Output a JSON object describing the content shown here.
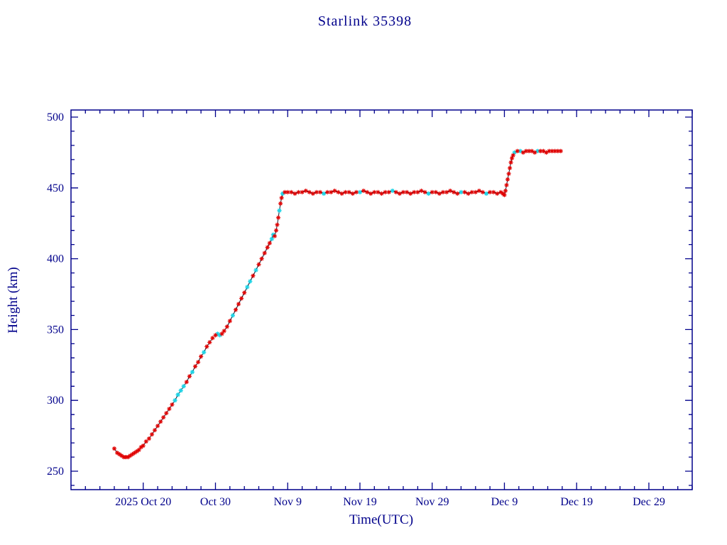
{
  "page": {
    "background": "#ffffff"
  },
  "chart_data": {
    "type": "line",
    "title": "Starlink 35398",
    "xlabel": "Time(UTC)",
    "ylabel": "Height (km)",
    "grid": false,
    "legend": null,
    "axis_color": "#00008b",
    "line_color": "#14142a",
    "marker_colors": [
      "#e00000",
      "#1fd4e6"
    ],
    "marker": "asterisk",
    "x_axis": {
      "unit": "days since 2025 Oct 20 (UTC)",
      "range": [
        -10,
        76
      ],
      "major_ticks": [
        {
          "t": 0,
          "label": "2025 Oct 20"
        },
        {
          "t": 10,
          "label": "Oct 30"
        },
        {
          "t": 20,
          "label": "Nov 9"
        },
        {
          "t": 30,
          "label": "Nov 19"
        },
        {
          "t": 40,
          "label": "Nov 29"
        },
        {
          "t": 50,
          "label": "Dec 9"
        },
        {
          "t": 60,
          "label": "Dec 19"
        },
        {
          "t": 70,
          "label": "Dec 29"
        }
      ],
      "minor_tick_step": 2
    },
    "y_axis": {
      "range": [
        237,
        505
      ],
      "major_ticks": [
        250,
        300,
        350,
        400,
        450,
        500
      ],
      "minor_tick_step": 10
    },
    "series": [
      {
        "name": "height-km",
        "point_format": [
          "days_since_oct20",
          "height_km",
          "marker_color_index"
        ],
        "points": [
          [
            -4.0,
            266,
            0
          ],
          [
            -3.6,
            263,
            0
          ],
          [
            -3.3,
            262,
            0
          ],
          [
            -3.0,
            261,
            0
          ],
          [
            -2.7,
            260,
            0
          ],
          [
            -2.4,
            260,
            0
          ],
          [
            -2.1,
            260,
            0
          ],
          [
            -1.8,
            261,
            0
          ],
          [
            -1.5,
            262,
            0
          ],
          [
            -1.2,
            263,
            0
          ],
          [
            -0.9,
            264,
            0
          ],
          [
            -0.6,
            265,
            0
          ],
          [
            -0.3,
            267,
            0
          ],
          [
            0.0,
            268,
            0
          ],
          [
            0.4,
            271,
            0
          ],
          [
            0.8,
            273,
            0
          ],
          [
            1.2,
            276,
            0
          ],
          [
            1.6,
            279,
            0
          ],
          [
            2.0,
            282,
            0
          ],
          [
            2.4,
            285,
            0
          ],
          [
            2.8,
            288,
            0
          ],
          [
            3.2,
            291,
            0
          ],
          [
            3.6,
            294,
            0
          ],
          [
            4.0,
            297,
            0
          ],
          [
            4.4,
            300,
            1
          ],
          [
            4.8,
            304,
            1
          ],
          [
            5.2,
            307,
            1
          ],
          [
            5.6,
            310,
            1
          ],
          [
            6.0,
            313,
            0
          ],
          [
            6.4,
            317,
            0
          ],
          [
            6.8,
            320,
            1
          ],
          [
            7.2,
            324,
            0
          ],
          [
            7.6,
            327,
            0
          ],
          [
            8.0,
            331,
            0
          ],
          [
            8.4,
            334,
            1
          ],
          [
            8.8,
            338,
            0
          ],
          [
            9.2,
            341,
            0
          ],
          [
            9.6,
            344,
            0
          ],
          [
            10.0,
            346,
            0
          ],
          [
            10.3,
            347,
            1
          ],
          [
            10.6,
            346,
            1
          ],
          [
            10.9,
            347,
            0
          ],
          [
            11.2,
            349,
            0
          ],
          [
            11.6,
            352,
            0
          ],
          [
            12.0,
            356,
            0
          ],
          [
            12.4,
            360,
            1
          ],
          [
            12.8,
            364,
            0
          ],
          [
            13.2,
            368,
            0
          ],
          [
            13.6,
            372,
            0
          ],
          [
            14.0,
            376,
            0
          ],
          [
            14.4,
            380,
            1
          ],
          [
            14.8,
            384,
            1
          ],
          [
            15.2,
            388,
            0
          ],
          [
            15.6,
            392,
            1
          ],
          [
            16.0,
            396,
            0
          ],
          [
            16.4,
            400,
            0
          ],
          [
            16.8,
            404,
            0
          ],
          [
            17.2,
            408,
            0
          ],
          [
            17.5,
            411,
            0
          ],
          [
            17.8,
            414,
            1
          ],
          [
            18.0,
            417,
            1
          ],
          [
            18.2,
            416,
            0
          ],
          [
            18.4,
            420,
            0
          ],
          [
            18.55,
            424,
            0
          ],
          [
            18.7,
            429,
            0
          ],
          [
            18.85,
            434,
            1
          ],
          [
            19.0,
            439,
            0
          ],
          [
            19.15,
            443,
            0
          ],
          [
            19.3,
            446,
            1
          ],
          [
            19.6,
            447,
            0
          ],
          [
            20.0,
            447,
            0
          ],
          [
            20.5,
            447,
            0
          ],
          [
            21.0,
            446,
            0
          ],
          [
            21.5,
            447,
            0
          ],
          [
            22.0,
            447,
            0
          ],
          [
            22.5,
            448,
            0
          ],
          [
            23.0,
            447,
            0
          ],
          [
            23.5,
            446,
            0
          ],
          [
            24.0,
            447,
            0
          ],
          [
            24.5,
            447,
            0
          ],
          [
            25.0,
            446,
            1
          ],
          [
            25.5,
            447,
            0
          ],
          [
            26.0,
            447,
            0
          ],
          [
            26.5,
            448,
            0
          ],
          [
            27.0,
            447,
            0
          ],
          [
            27.5,
            446,
            0
          ],
          [
            28.0,
            447,
            0
          ],
          [
            28.5,
            447,
            0
          ],
          [
            29.0,
            446,
            0
          ],
          [
            29.5,
            447,
            0
          ],
          [
            30.0,
            447,
            1
          ],
          [
            30.5,
            448,
            0
          ],
          [
            31.0,
            447,
            0
          ],
          [
            31.5,
            446,
            0
          ],
          [
            32.0,
            447,
            0
          ],
          [
            32.5,
            447,
            0
          ],
          [
            33.0,
            446,
            0
          ],
          [
            33.5,
            447,
            0
          ],
          [
            34.0,
            447,
            0
          ],
          [
            34.5,
            448,
            1
          ],
          [
            35.0,
            447,
            0
          ],
          [
            35.5,
            446,
            0
          ],
          [
            36.0,
            447,
            0
          ],
          [
            36.5,
            447,
            0
          ],
          [
            37.0,
            446,
            0
          ],
          [
            37.5,
            447,
            0
          ],
          [
            38.0,
            447,
            0
          ],
          [
            38.5,
            448,
            0
          ],
          [
            39.0,
            447,
            0
          ],
          [
            39.5,
            446,
            1
          ],
          [
            40.0,
            447,
            0
          ],
          [
            40.5,
            447,
            0
          ],
          [
            41.0,
            446,
            0
          ],
          [
            41.5,
            447,
            0
          ],
          [
            42.0,
            447,
            0
          ],
          [
            42.5,
            448,
            0
          ],
          [
            43.0,
            447,
            0
          ],
          [
            43.5,
            446,
            0
          ],
          [
            44.0,
            447,
            1
          ],
          [
            44.5,
            447,
            0
          ],
          [
            45.0,
            446,
            0
          ],
          [
            45.5,
            447,
            0
          ],
          [
            46.0,
            447,
            0
          ],
          [
            46.5,
            448,
            0
          ],
          [
            47.0,
            447,
            0
          ],
          [
            47.5,
            446,
            1
          ],
          [
            48.0,
            447,
            0
          ],
          [
            48.5,
            447,
            0
          ],
          [
            49.0,
            446,
            0
          ],
          [
            49.5,
            447,
            0
          ],
          [
            49.8,
            446,
            0
          ],
          [
            50.0,
            445,
            0
          ],
          [
            50.15,
            448,
            0
          ],
          [
            50.3,
            452,
            0
          ],
          [
            50.45,
            456,
            0
          ],
          [
            50.6,
            460,
            0
          ],
          [
            50.75,
            464,
            0
          ],
          [
            50.9,
            468,
            0
          ],
          [
            51.05,
            471,
            0
          ],
          [
            51.2,
            473,
            0
          ],
          [
            51.4,
            475,
            1
          ],
          [
            51.8,
            476,
            0
          ],
          [
            52.2,
            476,
            1
          ],
          [
            52.6,
            475,
            0
          ],
          [
            53.0,
            476,
            0
          ],
          [
            53.4,
            476,
            0
          ],
          [
            53.8,
            476,
            0
          ],
          [
            54.2,
            475,
            0
          ],
          [
            54.6,
            476,
            1
          ],
          [
            55.0,
            476,
            0
          ],
          [
            55.4,
            476,
            0
          ],
          [
            55.8,
            475,
            0
          ],
          [
            56.2,
            476,
            0
          ],
          [
            56.6,
            476,
            0
          ],
          [
            57.0,
            476,
            0
          ],
          [
            57.4,
            476,
            0
          ],
          [
            57.8,
            476,
            0
          ]
        ]
      }
    ]
  }
}
